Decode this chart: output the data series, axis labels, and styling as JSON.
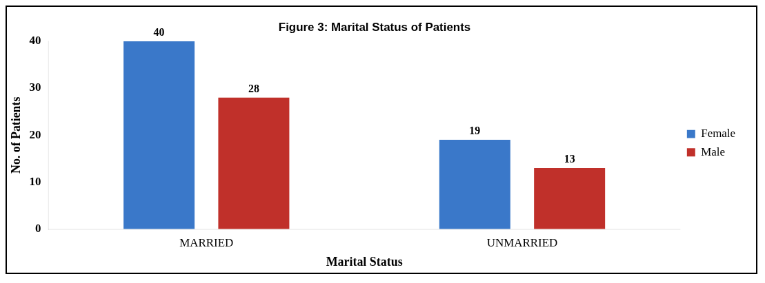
{
  "chart_data": {
    "type": "bar",
    "title": "Figure 3: Marital Status of Patients",
    "xlabel": "Marital Status",
    "ylabel": "No. of Patients",
    "categories": [
      "MARRIED",
      "UNMARRIED"
    ],
    "series": [
      {
        "name": "Female",
        "color": "#3a78c9",
        "values": [
          40,
          19
        ]
      },
      {
        "name": "Male",
        "color": "#c0302a",
        "values": [
          28,
          13
        ]
      }
    ],
    "ylim": [
      0,
      40
    ],
    "yticks": [
      0,
      10,
      20,
      30,
      40
    ],
    "grid": false,
    "legend": "right",
    "data_labels": true
  }
}
